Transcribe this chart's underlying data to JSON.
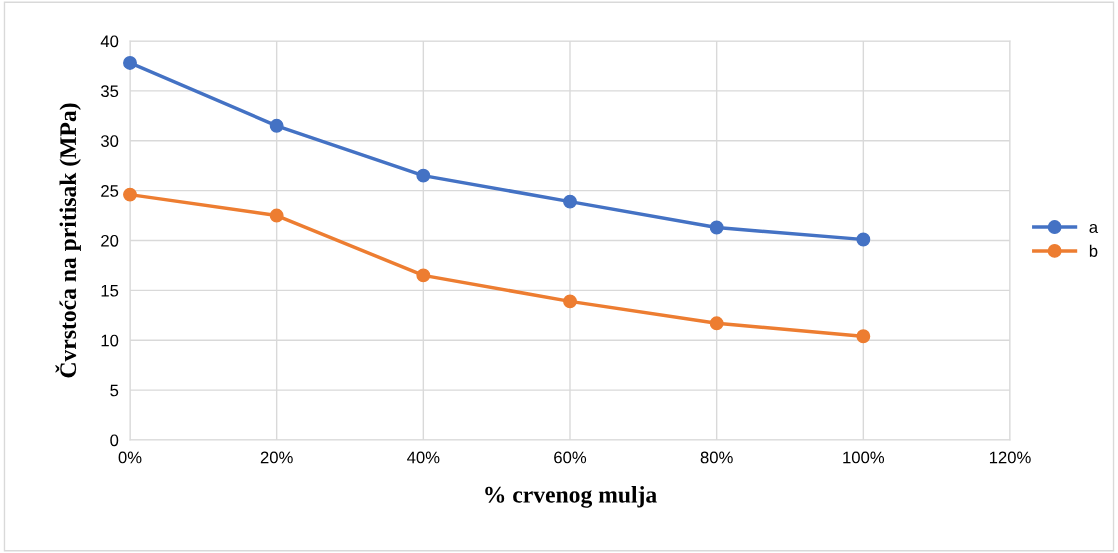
{
  "chart_data": {
    "type": "line",
    "xlabel": "% crvenog mulja",
    "ylabel": "Čvrstoća na pritisak (MPa)",
    "x": [
      0,
      20,
      40,
      60,
      80,
      100
    ],
    "series": [
      {
        "name": "a",
        "color": "#4472c4",
        "values": [
          37.8,
          31.5,
          26.5,
          23.9,
          21.3,
          20.1
        ]
      },
      {
        "name": "b",
        "color": "#ed7d31",
        "values": [
          24.6,
          22.5,
          16.5,
          13.9,
          11.7,
          10.4
        ]
      }
    ],
    "xlim": [
      0,
      120
    ],
    "xticks": [
      {
        "value": 0,
        "label": "0%"
      },
      {
        "value": 20,
        "label": "20%"
      },
      {
        "value": 40,
        "label": "40%"
      },
      {
        "value": 60,
        "label": "60%"
      },
      {
        "value": 80,
        "label": "80%"
      },
      {
        "value": 100,
        "label": "100%"
      },
      {
        "value": 120,
        "label": "120%"
      }
    ],
    "ylim": [
      0,
      40
    ],
    "yticks": [
      0,
      5,
      10,
      15,
      20,
      25,
      30,
      35,
      40
    ],
    "grid": true,
    "legend": "right",
    "marker": "circle",
    "line_style": "solid"
  }
}
